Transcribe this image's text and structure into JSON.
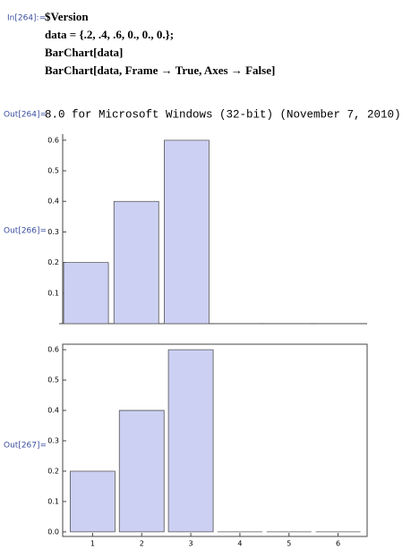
{
  "notebook": {
    "input_label": "In[264]:=",
    "input_lines": [
      "$Version",
      "data = {.2, .4, .6, 0., 0., 0.};",
      "BarChart[data]",
      "BarChart[data, Frame → True, Axes → False]"
    ],
    "version_label": "Out[264]=",
    "version_text": "8.0 for Microsoft Windows (32-bit) (November 7, 2010)"
  },
  "chart_data": [
    {
      "type": "bar",
      "output_label": "Out[266]=",
      "frame": false,
      "color": "#ccd0f3",
      "categories": [
        null,
        null,
        null,
        null,
        null,
        null
      ],
      "values": [
        0.2,
        0.4,
        0.6,
        0,
        0,
        0
      ],
      "ylim": [
        0,
        0.62
      ],
      "yticks": [
        0.1,
        0.2,
        0.3,
        0.4,
        0.5,
        0.6
      ]
    },
    {
      "type": "bar",
      "output_label": "Out[267]=",
      "frame": true,
      "color": "#ccd0f3",
      "categories": [
        "1",
        "2",
        "3",
        "4",
        "5",
        "6"
      ],
      "values": [
        0.2,
        0.4,
        0.6,
        0,
        0,
        0
      ],
      "ylim": [
        -0.015,
        0.618
      ],
      "yticks": [
        {
          "value": 0,
          "label": "0.0"
        },
        0.1,
        0.2,
        0.3,
        0.4,
        0.5,
        0.6
      ]
    }
  ]
}
